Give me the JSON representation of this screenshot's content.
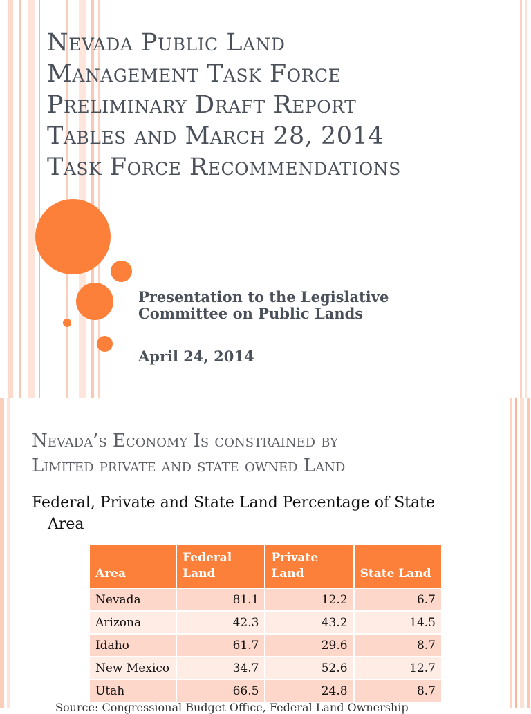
{
  "slide1": {
    "title_lines": [
      "Nevada Public Land",
      "Management Task Force",
      "Preliminary Draft Report",
      "Tables and March 28, 2014",
      "Task Force Recommendations"
    ],
    "subtitle_lines": [
      "Presentation to the Legislative",
      "Committee on Public Lands"
    ],
    "date": "April 24, 2014"
  },
  "slide2": {
    "title_lines": [
      "Nevada’s Economy Is constrained by",
      "Limited private and state owned Land"
    ],
    "subheading": "Federal, Private and State Land Percentage of State Area",
    "table": {
      "headers": [
        "Area",
        "Federal Land",
        "Private Land",
        "State Land"
      ],
      "rows": [
        [
          "Nevada",
          "81.1",
          "12.2",
          "6.7"
        ],
        [
          "Arizona",
          "42.3",
          "43.2",
          "14.5"
        ],
        [
          "Idaho",
          "61.7",
          "29.6",
          "8.7"
        ],
        [
          "New Mexico",
          "34.7",
          "52.6",
          "12.7"
        ],
        [
          "Utah",
          "66.5",
          "24.8",
          "8.7"
        ]
      ]
    },
    "source": "Source: Congressional Budget Office, Federal Land Ownership"
  },
  "colors": {
    "accent": "#fc7f3a",
    "stripe_light": "#fbd3c3",
    "row_dark": "#fdd7c9",
    "row_light": "#feece5",
    "title_text": "#4a505a"
  }
}
